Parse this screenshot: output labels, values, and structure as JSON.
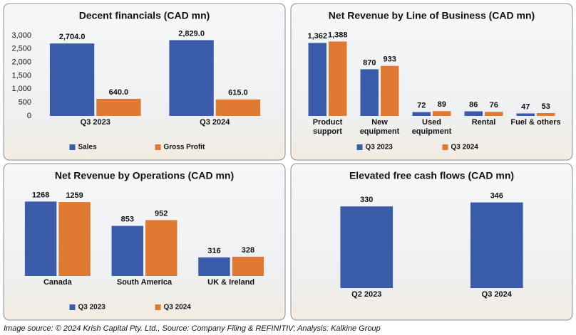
{
  "chart_data": [
    {
      "type": "bar",
      "title": "Decent financials (CAD mn)",
      "categories": [
        "Q3 2023",
        "Q3 2024"
      ],
      "series": [
        {
          "name": "Sales",
          "color": "#3a5ba8",
          "values": [
            2704,
            2829
          ],
          "value_labels": [
            "2,704.0",
            "2,829.0"
          ]
        },
        {
          "name": "Gross Profit",
          "color": "#e07a32",
          "values": [
            640,
            615
          ],
          "value_labels": [
            "640.0",
            "615.0"
          ]
        }
      ],
      "ylim": [
        0,
        3000
      ],
      "yticks": [
        0,
        500,
        {
          "value": 1000,
          "label": "1,000"
        },
        {
          "value": 1500,
          "label": "1,500"
        },
        {
          "value": 2000,
          "label": "2,000"
        },
        {
          "value": 2500,
          "label": "2,500"
        },
        {
          "value": 3000,
          "label": "3,000"
        }
      ],
      "legend": "bottom"
    },
    {
      "type": "bar",
      "title": "Net Revenue by Line of Business (CAD mn)",
      "categories": [
        "Product support",
        "New equipment",
        "Used equipment",
        "Rental",
        "Fuel & others"
      ],
      "series": [
        {
          "name": "Q3 2023",
          "color": "#3a5ba8",
          "values": [
            1362,
            870,
            72,
            86,
            47
          ],
          "value_labels": [
            "1,362",
            "870",
            "72",
            "86",
            "47"
          ]
        },
        {
          "name": "Q3 2024",
          "color": "#e07a32",
          "values": [
            1388,
            933,
            89,
            76,
            53
          ],
          "value_labels": [
            "1,388",
            "933",
            "89",
            "76",
            "53"
          ]
        }
      ],
      "legend": "bottom"
    },
    {
      "type": "bar",
      "title": "Net Revenue by Operations (CAD mn)",
      "categories": [
        "Canada",
        "South America",
        "UK & Ireland"
      ],
      "series": [
        {
          "name": "Q3 2023",
          "color": "#3a5ba8",
          "values": [
            1268,
            853,
            316
          ]
        },
        {
          "name": "Q3 2024",
          "color": "#e07a32",
          "values": [
            1259,
            952,
            328
          ]
        }
      ],
      "legend": "bottom"
    },
    {
      "type": "bar",
      "title": "Elevated free cash flows (CAD mn)",
      "categories": [
        "Q2 2023",
        "Q3 2024"
      ],
      "values": [
        330,
        346
      ],
      "color": "#3a5ba8"
    }
  ],
  "source": "Image source: © 2024 Krish Capital Pty. Ltd., Source: Company Filing & REFINITIV; Analysis: Kalkine Group"
}
